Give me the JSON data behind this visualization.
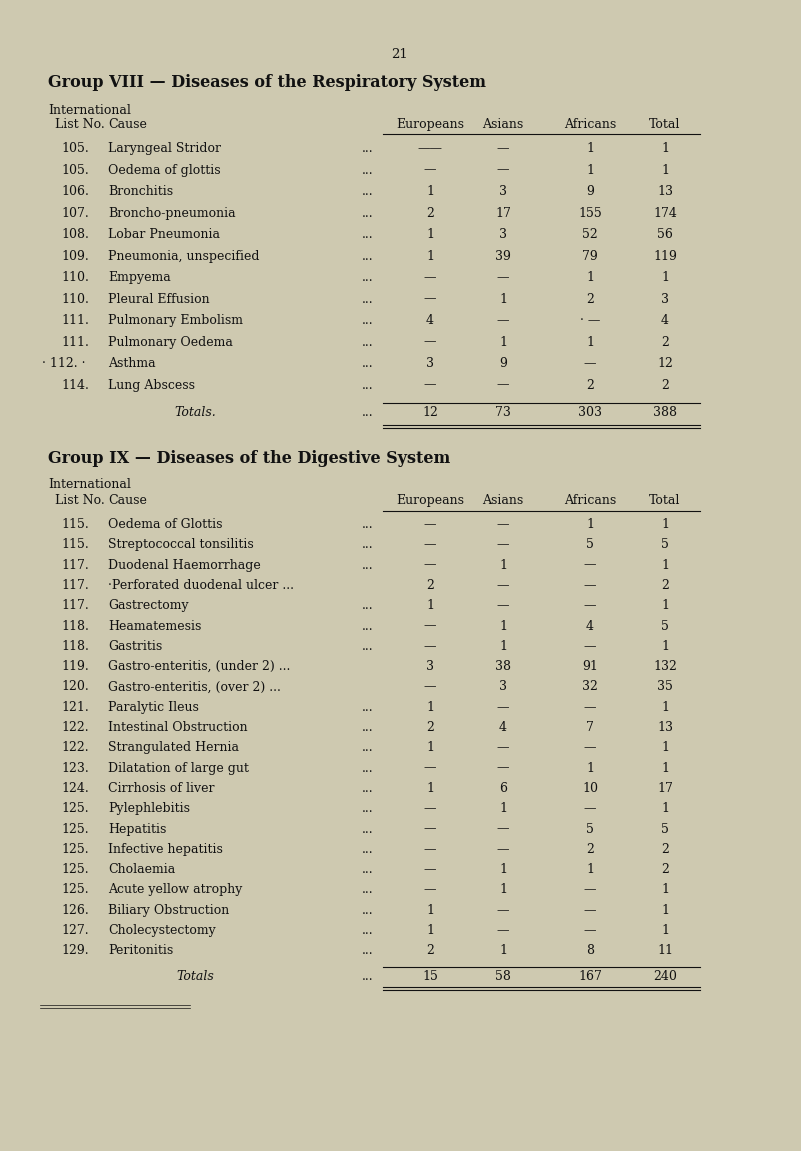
{
  "page_number": "21",
  "bg_color": "#cec9b0",
  "text_color": "#1a1a1a",
  "group8": {
    "title": "Group VIII — Diseases of the Respiratory System",
    "int_label": "International",
    "list_label": "List No.",
    "cause_label": "Cause",
    "col_headers": [
      "Europeans",
      "Asians",
      "Africans",
      "Total"
    ],
    "rows": [
      [
        "105.",
        "Laryngeal Stridor",
        "——",
        "—",
        "1",
        "1"
      ],
      [
        "105.",
        "Oedema of glottis",
        "—",
        "—",
        "1",
        "1"
      ],
      [
        "106.",
        "Bronchitis",
        "1",
        "3",
        "9",
        "13"
      ],
      [
        "107.",
        "Broncho-pneumonia",
        "2",
        "17",
        "155",
        "174"
      ],
      [
        "108.",
        "Lobar Pneumonia",
        "1",
        "3",
        "52",
        "56"
      ],
      [
        "109.",
        "Pneumonia, unspecified",
        "1",
        "39",
        "79",
        "119"
      ],
      [
        "110.",
        "Empyema",
        "—",
        "—",
        "1",
        "1"
      ],
      [
        "110.",
        "Pleural Effusion",
        "—",
        "1",
        "2",
        "3"
      ],
      [
        "111.",
        "Pulmonary Embolism",
        "4",
        "—",
        "· —",
        "4"
      ],
      [
        "111.",
        "Pulmonary Oedema",
        "—",
        "1",
        "1",
        "2"
      ],
      [
        "· 112. ·",
        "Asthma",
        "3",
        "9",
        "—",
        "12"
      ],
      [
        "114.",
        "Lung Abscess",
        "—",
        "—",
        "2",
        "2"
      ]
    ],
    "totals_label": "Totals.",
    "totals": [
      "12",
      "73",
      "303",
      "388"
    ]
  },
  "group9": {
    "title": "Group IX — Diseases of the Digestive System",
    "int_label": "International",
    "list_label": "List No.",
    "cause_label": "Cause",
    "col_headers": [
      "Europeans",
      "Asians",
      "Africans",
      "Total"
    ],
    "rows": [
      [
        "115.",
        "Oedema of Glottis",
        "—",
        "—",
        "1",
        "1"
      ],
      [
        "115.",
        "Streptococcal tonsilitis",
        "—",
        "—",
        "5",
        "5"
      ],
      [
        "117.",
        "Duodenal Haemorrhage",
        "—",
        "1",
        "—",
        "1"
      ],
      [
        "117.",
        "·Perforated duodenal ulcer ...",
        "2",
        "—",
        "—",
        "2"
      ],
      [
        "117.",
        "Gastrectomy",
        "1",
        "—",
        "—",
        "1"
      ],
      [
        "118.",
        "Heamatemesis",
        "—",
        "1",
        "4",
        "5"
      ],
      [
        "118.",
        "Gastritis",
        "—",
        "1",
        "—",
        "1"
      ],
      [
        "119.",
        "Gastro-enteritis, (under 2) ...",
        "3",
        "38",
        "91",
        "132"
      ],
      [
        "120.",
        "Gastro-enteritis, (over 2) ...",
        "—",
        "3",
        "32",
        "35"
      ],
      [
        "121.",
        "Paralytic Ileus",
        "1",
        "—",
        "—",
        "1"
      ],
      [
        "122.",
        "Intestinal Obstruction",
        "2",
        "4",
        "7",
        "13"
      ],
      [
        "122.",
        "Strangulated Hernia",
        "1",
        "—",
        "—",
        "1"
      ],
      [
        "123.",
        "Dilatation of large gut",
        "—",
        "—",
        "1",
        "1"
      ],
      [
        "124.",
        "Cirrhosis of liver",
        "1",
        "6",
        "10",
        "17"
      ],
      [
        "125.",
        "Pylephlebitis",
        "—",
        "1",
        "—",
        "1"
      ],
      [
        "125.",
        "Hepatitis",
        "—",
        "—",
        "5",
        "5"
      ],
      [
        "125.",
        "Infective hepatitis",
        "—",
        "—",
        "2",
        "2"
      ],
      [
        "125.",
        "Cholaemia",
        "—",
        "1",
        "1",
        "2"
      ],
      [
        "125.",
        "Acute yellow atrophy",
        "—",
        "1",
        "—",
        "1"
      ],
      [
        "126.",
        "Biliary Obstruction",
        "1",
        "—",
        "—",
        "1"
      ],
      [
        "127.",
        "Cholecystectomy",
        "1",
        "—",
        "—",
        "1"
      ],
      [
        "129.",
        "Peritonitis",
        "2",
        "1",
        "8",
        "11"
      ]
    ],
    "totals_label": "Totals",
    "totals": [
      "15",
      "58",
      "167",
      "240"
    ]
  }
}
